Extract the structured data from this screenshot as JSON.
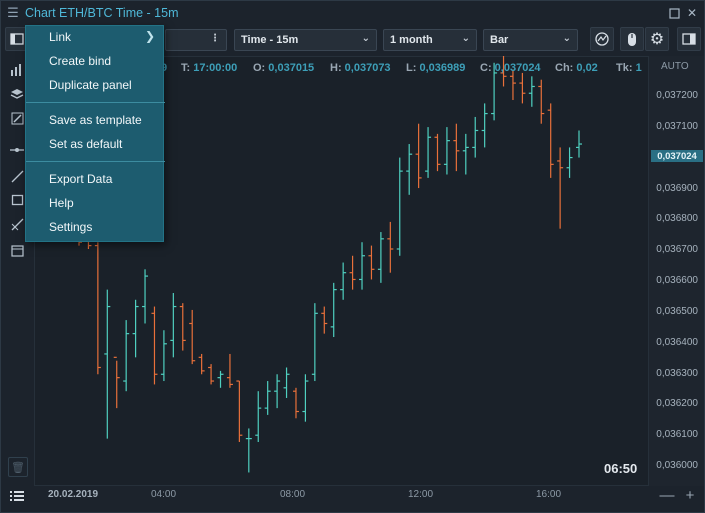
{
  "window": {
    "title": "Chart ETH/BTC Time - 15m",
    "menu_icon": "hamburger-icon",
    "controls": [
      "maximize-icon",
      "close-icon"
    ]
  },
  "toolbar": {
    "search_value": "",
    "interval": "Time - 15m",
    "period": "1 month",
    "chart_type": "Bar",
    "icons": [
      "panel-toggle-icon",
      "more-vertical-icon",
      "indicator-icon",
      "mouse-icon",
      "gear-icon",
      "sidebar-toggle-icon"
    ]
  },
  "ohlc": {
    "d_value": "9",
    "t_key": "T:",
    "t_value": "17:00:00",
    "o_key": "O:",
    "o_value": "0,037015",
    "h_key": "H:",
    "h_value": "0,037073",
    "l_key": "L:",
    "l_value": "0,036989",
    "c_key": "C:",
    "c_value": "0,037024",
    "ch_key": "Ch:",
    "ch_value": "0,02",
    "tk_key": "Tk:",
    "tk_value": "1"
  },
  "price_axis": {
    "auto_label": "AUTO",
    "labels": [
      "0,037200",
      "0,037100",
      "0,036900",
      "0,036800",
      "0,036700",
      "0,036600",
      "0,036500",
      "0,036400",
      "0,036300",
      "0,036200",
      "0,036100",
      "0,036000"
    ],
    "current_price": "0,037024"
  },
  "time_axis": {
    "date": "20.02.2019",
    "labels": [
      "04:00",
      "08:00",
      "12:00",
      "16:00"
    ]
  },
  "countdown": "06:50",
  "colors": {
    "up": "#4fd0c0",
    "down": "#e8703a",
    "accent": "#4fb8d8",
    "menu_bg": "#1d5c6f"
  },
  "context_menu": {
    "items": [
      {
        "label": "Link",
        "has_submenu": true
      },
      {
        "label": "Create bind"
      },
      {
        "label": "Duplicate panel"
      },
      {
        "label": "Save as template"
      },
      {
        "label": "Set as default"
      },
      {
        "label": "Export Data"
      },
      {
        "label": "Help"
      },
      {
        "label": "Settings"
      }
    ]
  },
  "chart_data": {
    "type": "ohlc-bar",
    "ylim": [
      0.03597,
      0.03724
    ],
    "up_color": "#4fd0c0",
    "down_color": "#e8703a",
    "bars": [
      {
        "o": 0.03672,
        "h": 0.03676,
        "l": 0.03668,
        "c": 0.03669
      },
      {
        "o": 0.0367,
        "h": 0.03672,
        "l": 0.03667,
        "c": 0.03668
      },
      {
        "o": 0.03668,
        "h": 0.03669,
        "l": 0.0363,
        "c": 0.03632
      },
      {
        "o": 0.03636,
        "h": 0.03655,
        "l": 0.03611,
        "c": 0.0365
      },
      {
        "o": 0.03635,
        "h": 0.03634,
        "l": 0.0362,
        "c": 0.03629
      },
      {
        "o": 0.03628,
        "h": 0.03646,
        "l": 0.03625,
        "c": 0.03642
      },
      {
        "o": 0.03642,
        "h": 0.03652,
        "l": 0.03635,
        "c": 0.0365
      },
      {
        "o": 0.0365,
        "h": 0.03661,
        "l": 0.03645,
        "c": 0.03659
      },
      {
        "o": 0.03648,
        "h": 0.0365,
        "l": 0.03627,
        "c": 0.0363
      },
      {
        "o": 0.0363,
        "h": 0.03643,
        "l": 0.03628,
        "c": 0.03639
      },
      {
        "o": 0.0364,
        "h": 0.03654,
        "l": 0.03635,
        "c": 0.0365
      },
      {
        "o": 0.0365,
        "h": 0.03651,
        "l": 0.03637,
        "c": 0.0364
      },
      {
        "o": 0.03645,
        "h": 0.03649,
        "l": 0.03633,
        "c": 0.03634
      },
      {
        "o": 0.03635,
        "h": 0.03636,
        "l": 0.0363,
        "c": 0.03631
      },
      {
        "o": 0.03632,
        "h": 0.03633,
        "l": 0.03627,
        "c": 0.03628
      },
      {
        "o": 0.03629,
        "h": 0.03631,
        "l": 0.03626,
        "c": 0.0363
      },
      {
        "o": 0.03629,
        "h": 0.03636,
        "l": 0.03626,
        "c": 0.03627
      },
      {
        "o": 0.03628,
        "h": 0.03628,
        "l": 0.0361,
        "c": 0.03612
      },
      {
        "o": 0.03611,
        "h": 0.03614,
        "l": 0.03601,
        "c": 0.03611
      },
      {
        "o": 0.03612,
        "h": 0.03625,
        "l": 0.0361,
        "c": 0.0362
      },
      {
        "o": 0.0362,
        "h": 0.03628,
        "l": 0.03618,
        "c": 0.03625
      },
      {
        "o": 0.03625,
        "h": 0.0363,
        "l": 0.0362,
        "c": 0.03628
      },
      {
        "o": 0.03626,
        "h": 0.03632,
        "l": 0.03623,
        "c": 0.0363
      },
      {
        "o": 0.03625,
        "h": 0.03626,
        "l": 0.03617,
        "c": 0.03619
      },
      {
        "o": 0.03619,
        "h": 0.0363,
        "l": 0.03616,
        "c": 0.03628
      },
      {
        "o": 0.0363,
        "h": 0.03651,
        "l": 0.03628,
        "c": 0.03648
      },
      {
        "o": 0.03648,
        "h": 0.0365,
        "l": 0.03642,
        "c": 0.03645
      },
      {
        "o": 0.03644,
        "h": 0.03657,
        "l": 0.03641,
        "c": 0.03655
      },
      {
        "o": 0.03655,
        "h": 0.03663,
        "l": 0.03652,
        "c": 0.0366
      },
      {
        "o": 0.0366,
        "h": 0.03665,
        "l": 0.03655,
        "c": 0.03658
      },
      {
        "o": 0.03658,
        "h": 0.03669,
        "l": 0.03655,
        "c": 0.03665
      },
      {
        "o": 0.03665,
        "h": 0.03668,
        "l": 0.03658,
        "c": 0.03661
      },
      {
        "o": 0.03661,
        "h": 0.03672,
        "l": 0.03657,
        "c": 0.0367
      },
      {
        "o": 0.0367,
        "h": 0.03675,
        "l": 0.0366,
        "c": 0.03667
      },
      {
        "o": 0.03667,
        "h": 0.03694,
        "l": 0.03665,
        "c": 0.0369
      },
      {
        "o": 0.0369,
        "h": 0.03698,
        "l": 0.03683,
        "c": 0.03695
      },
      {
        "o": 0.03695,
        "h": 0.03704,
        "l": 0.03685,
        "c": 0.03688
      },
      {
        "o": 0.0369,
        "h": 0.03703,
        "l": 0.03688,
        "c": 0.037
      },
      {
        "o": 0.037,
        "h": 0.03701,
        "l": 0.0369,
        "c": 0.03692
      },
      {
        "o": 0.03692,
        "h": 0.03703,
        "l": 0.03689,
        "c": 0.03699
      },
      {
        "o": 0.03699,
        "h": 0.03704,
        "l": 0.0369,
        "c": 0.03696
      },
      {
        "o": 0.03696,
        "h": 0.03701,
        "l": 0.03689,
        "c": 0.03697
      },
      {
        "o": 0.03697,
        "h": 0.03706,
        "l": 0.03694,
        "c": 0.03702
      },
      {
        "o": 0.03702,
        "h": 0.0371,
        "l": 0.03697,
        "c": 0.03707
      },
      {
        "o": 0.03707,
        "h": 0.03722,
        "l": 0.03705,
        "c": 0.03719
      },
      {
        "o": 0.03719,
        "h": 0.03725,
        "l": 0.03715,
        "c": 0.03718
      },
      {
        "o": 0.03718,
        "h": 0.0372,
        "l": 0.03711,
        "c": 0.03716
      },
      {
        "o": 0.03716,
        "h": 0.03719,
        "l": 0.0371,
        "c": 0.03713
      },
      {
        "o": 0.03713,
        "h": 0.03718,
        "l": 0.03709,
        "c": 0.03715
      },
      {
        "o": 0.03715,
        "h": 0.03717,
        "l": 0.03704,
        "c": 0.03707
      },
      {
        "o": 0.03708,
        "h": 0.0371,
        "l": 0.03688,
        "c": 0.03692
      },
      {
        "o": 0.03693,
        "h": 0.03697,
        "l": 0.03673,
        "c": 0.03691
      },
      {
        "o": 0.03691,
        "h": 0.03697,
        "l": 0.03688,
        "c": 0.03694
      },
      {
        "o": 0.03697,
        "h": 0.03702,
        "l": 0.03694,
        "c": 0.03698
      }
    ]
  }
}
